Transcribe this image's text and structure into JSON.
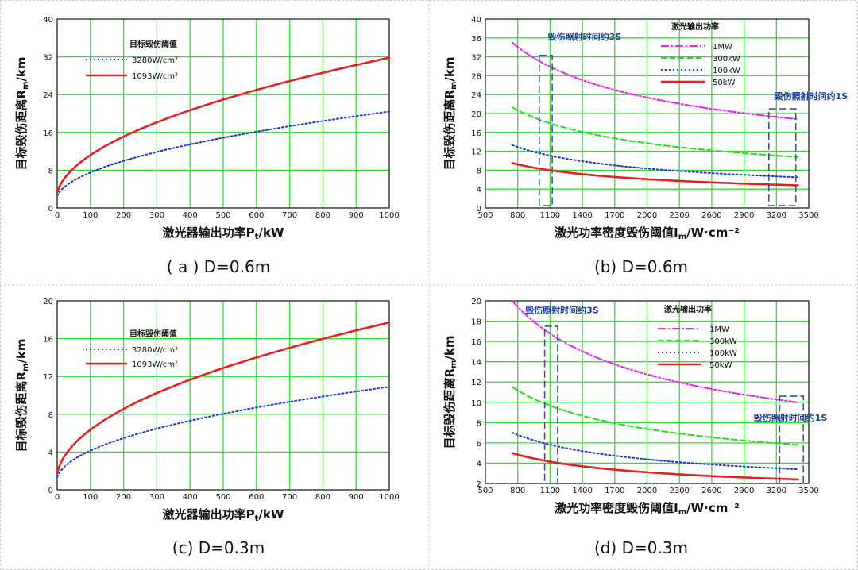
{
  "colors": {
    "grid": "#33dd33",
    "red": "#e62020",
    "blue": "#2233dd",
    "magenta": "#ee22ee",
    "green": "#22dd22",
    "box": "#3a5a8a"
  },
  "chart_data": [
    {
      "type": "line",
      "caption": "( a ) D=0.6m",
      "xlabel_main": "激光器输出功率P",
      "xlabel_sub": "t",
      "xlabel_tail": "/kW",
      "ylabel_main": "目标毁伤距离R",
      "ylabel_sub": "m",
      "ylabel_tail": "/km",
      "xlim": [
        0,
        1000
      ],
      "xticks": [
        0,
        100,
        200,
        300,
        400,
        500,
        600,
        700,
        800,
        900,
        1000
      ],
      "ylim": [
        0,
        40
      ],
      "yticks": [
        0,
        8,
        16,
        24,
        32,
        40
      ],
      "legend_title": "目标毁伤阈值",
      "series": [
        {
          "name": "3280W/cm²",
          "color": "blue",
          "style": "dotted",
          "k": 0.6,
          "p": 0.5
        },
        {
          "name": "1093W/cm²",
          "color": "red",
          "style": "solid",
          "k": 0.96,
          "p": 0.5
        }
      ]
    },
    {
      "type": "line",
      "caption": "(b) D=0.6m",
      "xlabel_main": "激光功率密度毁伤阈值I",
      "xlabel_sub": "m",
      "xlabel_tail": "/W·cm⁻²",
      "ylabel_main": "目标毁伤距离R",
      "ylabel_sub": "m",
      "ylabel_tail": "/km",
      "xlim": [
        500,
        3500
      ],
      "xticks": [
        500,
        800,
        1100,
        1400,
        1700,
        2000,
        2300,
        2600,
        2900,
        3200,
        3500
      ],
      "ylim": [
        0,
        40
      ],
      "yticks": [
        0,
        4,
        8,
        12,
        16,
        20,
        24,
        28,
        32,
        36,
        40
      ],
      "legend_title": "激光输出功率",
      "series": [
        {
          "name": "1MW",
          "color": "magenta",
          "style": "dashdot",
          "y750": 35.0,
          "y3400": 18.8
        },
        {
          "name": "300kW",
          "color": "green",
          "style": "dashed",
          "y750": 21.3,
          "y3400": 10.8
        },
        {
          "name": "100kW",
          "color": "blue",
          "style": "dotted",
          "y750": 13.3,
          "y3400": 6.5
        },
        {
          "name": "50kW",
          "color": "red",
          "style": "solid",
          "y750": 9.5,
          "y3400": 4.8
        }
      ],
      "annotations": [
        {
          "text": "毁伤照射时间约3S",
          "x": 1080,
          "y": 35.6
        },
        {
          "text": "毁伤照射时间约1S",
          "x": 3180,
          "y": 23.0
        }
      ],
      "boxes": [
        {
          "x0": 1000,
          "x1": 1120,
          "y0": 0.5,
          "y1": 32.3
        },
        {
          "x0": 3130,
          "x1": 3380,
          "y0": 0.5,
          "y1": 21.0
        }
      ]
    },
    {
      "type": "line",
      "caption": "(c) D=0.3m",
      "xlabel_main": "激光器输出功率P",
      "xlabel_sub": "t",
      "xlabel_tail": "/kW",
      "ylabel_main": "目标毁伤距离R",
      "ylabel_sub": "m",
      "ylabel_tail": "/km",
      "xlim": [
        0,
        1000
      ],
      "xticks": [
        0,
        100,
        200,
        300,
        400,
        500,
        600,
        700,
        800,
        900,
        1000
      ],
      "ylim": [
        0,
        20
      ],
      "yticks": [
        0,
        4,
        8,
        12,
        16,
        20
      ],
      "legend_title": "目标毁伤阈值",
      "series": [
        {
          "name": "3280W/cm²",
          "color": "blue",
          "style": "dotted",
          "k": 0.4,
          "p": 0.47
        },
        {
          "name": "1093W/cm²",
          "color": "red",
          "style": "solid",
          "k": 0.62,
          "p": 0.48
        }
      ]
    },
    {
      "type": "line",
      "caption": "(d) D=0.3m",
      "xlabel_main": "激光功率密度毁伤阈值I",
      "xlabel_sub": "m",
      "xlabel_tail": "/W·cm⁻²",
      "ylabel_main": "目标毁伤距离R",
      "ylabel_sub": "m",
      "ylabel_tail": "/km",
      "xlim": [
        500,
        3500
      ],
      "xticks": [
        500,
        800,
        1100,
        1400,
        1700,
        2000,
        2300,
        2600,
        2900,
        3200,
        3500
      ],
      "ylim": [
        2,
        20
      ],
      "yticks": [
        2,
        4,
        6,
        8,
        10,
        12,
        14,
        16,
        18,
        20
      ],
      "legend_title": "激光输出功率",
      "series": [
        {
          "name": "1MW",
          "color": "magenta",
          "style": "dashdot",
          "y750": 20.0,
          "y3400": 10.0
        },
        {
          "name": "300kW",
          "color": "green",
          "style": "dashed",
          "y750": 11.5,
          "y3400": 5.8
        },
        {
          "name": "100kW",
          "color": "blue",
          "style": "dotted",
          "y750": 7.0,
          "y3400": 3.4
        },
        {
          "name": "50kW",
          "color": "red",
          "style": "solid",
          "y750": 5.0,
          "y3400": 2.4
        }
      ],
      "annotations": [
        {
          "text": "毁伤照射时间约3S",
          "x": 870,
          "y": 18.8
        },
        {
          "text": "毁伤照射时间约1S",
          "x": 2990,
          "y": 8.2
        }
      ],
      "boxes": [
        {
          "x0": 1050,
          "x1": 1170,
          "y0": 2.0,
          "y1": 17.5
        },
        {
          "x0": 3230,
          "x1": 3450,
          "y0": 2.0,
          "y1": 10.6
        }
      ]
    }
  ]
}
